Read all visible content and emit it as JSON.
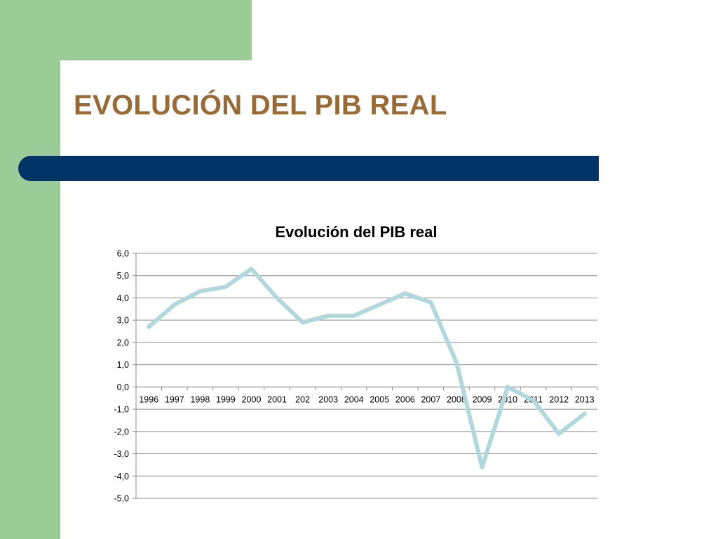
{
  "slide": {
    "title": "EVOLUCIÓN DEL PIB REAL"
  },
  "colors": {
    "sidebar_green": "#9bcb97",
    "title_brown": "#9a6a35",
    "bar_navy": "#003466",
    "series_line": "#b1d8dc",
    "gridline": "#8c8c8c"
  },
  "chart_data": {
    "type": "line",
    "title": "Evolución del PIB real",
    "xlabel": "",
    "ylabel": "",
    "categories": [
      "1996",
      "1997",
      "1998",
      "1999",
      "2000",
      "2001",
      "202",
      "2003",
      "2004",
      "2005",
      "2006",
      "2007",
      "2008",
      "2009",
      "2010",
      "2011",
      "2012",
      "2013"
    ],
    "series": [
      {
        "values": [
          2.7,
          3.7,
          4.3,
          4.5,
          5.3,
          4.0,
          2.9,
          3.2,
          3.2,
          3.7,
          4.2,
          3.8,
          1.1,
          -3.6,
          0.0,
          -0.6,
          -2.1,
          -1.2
        ]
      }
    ],
    "yticks": [
      "-5,0",
      "-4,0",
      "-3,0",
      "-2,0",
      "-1,0",
      "0,0",
      "1,0",
      "2,0",
      "3,0",
      "4,0",
      "5,0",
      "6,0"
    ],
    "ylim": [
      -5,
      6
    ],
    "grid": true,
    "legend": "none"
  }
}
